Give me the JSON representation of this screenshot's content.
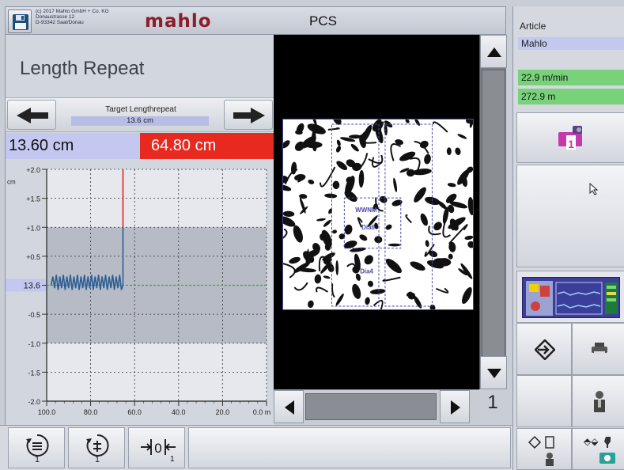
{
  "header": {
    "copyright_lines": [
      "(c) 2017 Mahlo GmbH + Co. KG",
      "Donaustrasse 12",
      "D-93342 Saal/Donau"
    ],
    "logo": "mahlo",
    "title": "PCS"
  },
  "screen_title": "Length Repeat",
  "target": {
    "label": "Target Lengthrepeat",
    "value": "13.6 cm"
  },
  "measured_value": "13.60 cm",
  "deviation_value": "64.80 cm",
  "chart_data": {
    "type": "line",
    "y_unit": "cm",
    "y_ticks": [
      "+2.0",
      "+1.5",
      "+1.0",
      "+0.5",
      "13.6",
      "-0.5",
      "-1.0",
      "-1.5",
      "-2.0"
    ],
    "x_ticks": [
      "100.0",
      "80.0",
      "60.0",
      "40.0",
      "20.0",
      "0.0 m"
    ],
    "xlim": [
      100,
      0
    ],
    "ylim": [
      -2.0,
      2.0
    ],
    "tolerance_band": [
      -1.0,
      1.0
    ],
    "target_line_label": "13.6",
    "series": [
      {
        "color": "#2c5e96",
        "x": [
          98,
          97.2,
          96.4,
          95.6,
          94.8,
          94,
          93.2,
          92.4,
          91.6,
          90.8,
          90,
          89.2,
          88.4,
          87.6,
          86.8,
          86,
          85.2,
          84.4,
          83.6,
          82.8,
          82,
          81.2,
          80.4,
          79.6,
          78.8,
          78,
          77.2,
          76.4,
          75.6,
          74.8,
          74,
          73.2,
          72.4,
          71.6,
          70.8,
          70,
          69.2,
          68.4,
          67.6,
          66.8,
          66,
          65.3,
          65.3
        ],
        "y": [
          0,
          0.15,
          -0.05,
          0.18,
          -0.08,
          0.15,
          -0.05,
          0.18,
          -0.08,
          0.15,
          -0.05,
          0.18,
          -0.08,
          0.15,
          -0.05,
          0.18,
          -0.08,
          0.15,
          -0.05,
          0.18,
          -0.08,
          0.15,
          -0.05,
          0.18,
          -0.08,
          0.15,
          -0.05,
          0.18,
          -0.08,
          0.15,
          -0.05,
          0.18,
          -0.08,
          0.15,
          -0.05,
          0.18,
          -0.08,
          0.15,
          -0.05,
          0.18,
          -0.08,
          0.0,
          1.0
        ]
      },
      {
        "color": "#e0221c",
        "x": [
          65.3,
          65.3
        ],
        "y": [
          1.0,
          2.0
        ]
      }
    ]
  },
  "camera": {
    "overlay_labels": [
      "WWNM",
      "Dia6",
      "Dia4"
    ],
    "page_number": "1"
  },
  "right": {
    "article_label": "Article",
    "article_value": "Mahlo",
    "speed": "22.9 m/min",
    "length": "272.9 m"
  },
  "colors": {
    "accent_red": "#e8291f",
    "status_green": "#78d27a",
    "value_blue": "#c4c8f0",
    "brand": "#8d1d2c"
  },
  "icons": {
    "save": "floppy-disk-icon",
    "prev": "arrow-left-icon",
    "next": "arrow-right-icon",
    "camera": "camera-1-icon",
    "enter": "enter-diamond-icon",
    "print": "printer-icon",
    "operator": "operator-icon",
    "repeat_1": "length-repeat-1-icon",
    "repeat_2": "length-repeat-2-icon",
    "width": "width-measure-icon"
  },
  "bottom": {
    "width_sub": "1"
  }
}
